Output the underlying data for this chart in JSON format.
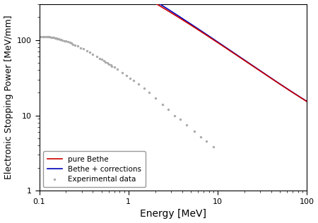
{
  "title": "",
  "xlabel": "Energy [MeV]",
  "ylabel": "Electronic Stopping Power [MeV/mm]",
  "xlim": [
    0.1,
    100
  ],
  "ylim": [
    1,
    300
  ],
  "legend_labels": [
    "pure Bethe",
    "Bethe + corrections",
    "Experimental data"
  ],
  "line_colors": [
    "#cc0000",
    "#0000bb"
  ],
  "marker_color": "#aaaaaa",
  "background_color": "#ffffff",
  "figsize": [
    4.5,
    3.16
  ],
  "dpi": 100,
  "legend_loc": "lower left",
  "exp_E": [
    0.105,
    0.11,
    0.115,
    0.12,
    0.125,
    0.13,
    0.135,
    0.14,
    0.145,
    0.15,
    0.155,
    0.16,
    0.165,
    0.17,
    0.175,
    0.18,
    0.19,
    0.2,
    0.21,
    0.22,
    0.23,
    0.24,
    0.25,
    0.27,
    0.29,
    0.31,
    0.34,
    0.37,
    0.4,
    0.44,
    0.48,
    0.53,
    0.58,
    0.64,
    0.7,
    0.5,
    0.55,
    0.6,
    0.65,
    0.75,
    0.85,
    0.95,
    1.05,
    1.15,
    1.3,
    1.5,
    1.7,
    2.0,
    2.4,
    2.8,
    3.3,
    3.8,
    4.5,
    5.5,
    6.5,
    7.5,
    9.0
  ],
  "exp_S": [
    110,
    111,
    111,
    111,
    111,
    110,
    109,
    108,
    107,
    106,
    105,
    104,
    103,
    102,
    101,
    100,
    98,
    96,
    94,
    92,
    90,
    88,
    86,
    83,
    79,
    76,
    72,
    68,
    64,
    60,
    57,
    53,
    50,
    47,
    44,
    55,
    51,
    48,
    45,
    41,
    37,
    34,
    31,
    29,
    26,
    23,
    20,
    17,
    14,
    12,
    10,
    8.8,
    7.5,
    6.2,
    5.2,
    4.6,
    3.8
  ]
}
